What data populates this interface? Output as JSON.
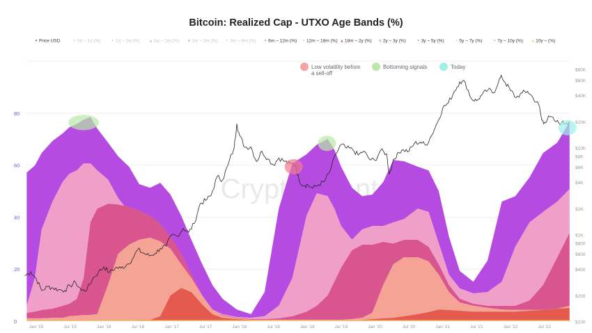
{
  "chart_data": {
    "type": "area",
    "title": "Bitcoin: Realized Cap - UTXO Age Bands (%)",
    "watermark": "CryptoQuant",
    "xlabel": "",
    "ylabel_left": "",
    "ylabel_right": "",
    "ylim_left": [
      0,
      100
    ],
    "ylim_right_log": [
      100,
      100000
    ],
    "grid": true,
    "legend_position": "top",
    "legend": [
      {
        "label": "Price USD",
        "marker": "•",
        "active": true,
        "color": "#222222"
      },
      {
        "label": "0d ~ 1d (%)",
        "marker": "•",
        "active": false,
        "color": "#c4c4c4"
      },
      {
        "label": "1d ~ 1w (%)",
        "marker": "•",
        "active": false,
        "color": "#c4c4c4"
      },
      {
        "label": "1w ~ 1m (%)",
        "marker": "▲",
        "active": false,
        "color": "#c4c4c4"
      },
      {
        "label": "1m ~ 3m (%)",
        "marker": "▼",
        "active": false,
        "color": "#c4c4c4"
      },
      {
        "label": "3m ~ 6m (%)",
        "marker": "•",
        "active": false,
        "color": "#c4c4c4"
      },
      {
        "label": "6m ~ 12m (%)",
        "marker": "•",
        "active": true,
        "color": "#b54be0"
      },
      {
        "label": "12m ~ 18m (%)",
        "marker": "•",
        "active": true,
        "color": "#f0a0c8"
      },
      {
        "label": "18m ~ 2y (%)",
        "marker": "▲",
        "active": true,
        "color": "#d9558e"
      },
      {
        "label": "2y ~ 3y (%)",
        "marker": "▼",
        "active": true,
        "color": "#f4a394"
      },
      {
        "label": "3y ~ 5y (%)",
        "marker": "•",
        "active": true,
        "color": "#e45a4e"
      },
      {
        "label": "5y ~ 7y (%)",
        "marker": "•",
        "active": true,
        "color": "#f7c2a0"
      },
      {
        "label": "7y ~ 10y (%)",
        "marker": "•",
        "active": true,
        "color": "#f08a3c"
      },
      {
        "label": "10y ~ (%)",
        "marker": "▲",
        "active": true,
        "color": "#f2d27a"
      }
    ],
    "annotations": [
      {
        "label": "Low volatility before",
        "label2": "a sell-off",
        "color": "#f5a3a0"
      },
      {
        "label": "Bottoming signals",
        "color": "#b9e8a8"
      },
      {
        "label": "Today",
        "color": "#9ef0e8"
      }
    ],
    "left_ticks": [
      0,
      20,
      40,
      60,
      80
    ],
    "right_ticks": [
      {
        "label": "$80K",
        "value": 80000
      },
      {
        "label": "$60K",
        "value": 60000
      },
      {
        "label": "$40K",
        "value": 40000
      },
      {
        "label": "$20K",
        "value": 20000
      },
      {
        "label": "$10K",
        "value": 10000
      },
      {
        "label": "$8K",
        "value": 8000
      },
      {
        "label": "$6K",
        "value": 6000
      },
      {
        "label": "$4K",
        "value": 4000
      },
      {
        "label": "$2K",
        "value": 2000
      },
      {
        "label": "$1K",
        "value": 1000
      },
      {
        "label": "$800",
        "value": 800
      },
      {
        "label": "$600",
        "value": 600
      },
      {
        "label": "$400",
        "value": 400
      },
      {
        "label": "$200",
        "value": 200
      },
      {
        "label": "$100",
        "value": 100
      }
    ],
    "x_ticks": [
      {
        "label": "Jan '15",
        "year": 2015.0
      },
      {
        "label": "Jul '15",
        "year": 2015.5
      },
      {
        "label": "Jan '16",
        "year": 2016.0
      },
      {
        "label": "Jul '16",
        "year": 2016.5
      },
      {
        "label": "Jan '17",
        "year": 2017.0
      },
      {
        "label": "Jul '17",
        "year": 2017.5
      },
      {
        "label": "Jan '18",
        "year": 2018.0
      },
      {
        "label": "Jul '18",
        "year": 2018.5
      },
      {
        "label": "Jan '19",
        "year": 2019.0
      },
      {
        "label": "Jul '19",
        "year": 2019.5
      },
      {
        "label": "Jan '20",
        "year": 2020.0
      },
      {
        "label": "Jul '20",
        "year": 2020.5
      },
      {
        "label": "Jan '21",
        "year": 2021.0
      },
      {
        "label": "Jul '21",
        "year": 2021.5
      },
      {
        "label": "Jan '22",
        "year": 2022.0
      },
      {
        "label": "Jul '22",
        "year": 2022.5
      }
    ],
    "highlights": [
      {
        "type": "bottoming",
        "year": 2015.7,
        "pct": 78
      },
      {
        "type": "low-volatility",
        "year": 2018.8,
        "pct": 61
      },
      {
        "type": "bottoming",
        "year": 2019.29,
        "pct": 70
      },
      {
        "type": "today",
        "year": 2022.84,
        "pct": 76
      }
    ],
    "x": [
      2014.86,
      2014.98,
      2015.08,
      2015.24,
      2015.39,
      2015.49,
      2015.6,
      2015.7,
      2015.8,
      2015.9,
      2016.06,
      2016.21,
      2016.37,
      2016.52,
      2016.68,
      2016.83,
      2016.98,
      2017.14,
      2017.29,
      2017.45,
      2017.6,
      2017.75,
      2017.96,
      2018.17,
      2018.37,
      2018.58,
      2018.78,
      2018.99,
      2019.14,
      2019.3,
      2019.4,
      2019.5,
      2019.66,
      2019.81,
      2019.96,
      2020.12,
      2020.27,
      2020.43,
      2020.63,
      2020.79,
      2020.94,
      2021.09,
      2021.25,
      2021.45,
      2021.66,
      2021.87,
      2022.07,
      2022.28,
      2022.48,
      2022.69,
      2022.87
    ],
    "series": [
      {
        "name": "6m ~ 12m (%)",
        "color": "#b54be0",
        "cumulative_top_pct": [
          57.2,
          59.9,
          64.7,
          69.3,
          72.2,
          74.6,
          75.9,
          77.5,
          78.6,
          74.1,
          68.7,
          63.4,
          59.4,
          52.7,
          51.3,
          53.2,
          48.7,
          40.6,
          31.3,
          21.9,
          13.9,
          8.6,
          4.5,
          2.7,
          11.2,
          43.3,
          60.7,
          64.2,
          67.9,
          70.1,
          66.0,
          59.4,
          51.3,
          48.1,
          48.7,
          53.5,
          62.0,
          61.5,
          59.4,
          58.0,
          50.0,
          32.6,
          19.3,
          15.2,
          23.3,
          46.0,
          48.1,
          55.3,
          64.7,
          68.7,
          76.7
        ]
      },
      {
        "name": "12m ~ 18m (%)",
        "color": "#f0a0c8",
        "cumulative_top_pct": [
          5.9,
          16.6,
          35.3,
          46.0,
          53.5,
          56.7,
          58.0,
          60.7,
          60.7,
          58.0,
          54.5,
          47.3,
          42.0,
          38.5,
          38.0,
          35.3,
          29.9,
          21.9,
          13.9,
          8.6,
          4.5,
          2.7,
          1.6,
          1.3,
          1.9,
          5.9,
          16.6,
          40.6,
          49.2,
          48.1,
          43.3,
          36.6,
          31.3,
          35.3,
          36.6,
          36.6,
          38.0,
          39.3,
          43.3,
          42.0,
          29.9,
          17.9,
          12.6,
          10.7,
          11.2,
          15.2,
          28.6,
          38.0,
          42.0,
          46.0,
          50.8
        ]
      },
      {
        "name": "18m ~ 2y (%)",
        "color": "#d9558e",
        "cumulative_top_pct": [
          3.2,
          3.7,
          4.3,
          4.8,
          5.9,
          6.7,
          8.6,
          16.6,
          38.0,
          43.3,
          45.2,
          44.9,
          43.9,
          42.5,
          40.6,
          37.4,
          32.6,
          25.9,
          17.9,
          9.9,
          4.5,
          2.4,
          1.3,
          0.8,
          0.8,
          1.1,
          1.9,
          3.7,
          5.9,
          9.9,
          15.2,
          20.6,
          27.3,
          29.4,
          29.4,
          30.5,
          29.9,
          31.3,
          31.3,
          28.6,
          21.9,
          13.9,
          8.6,
          6.7,
          5.9,
          5.9,
          5.9,
          8.0,
          13.9,
          24.6,
          34.0
        ]
      },
      {
        "name": "2y ~ 3y (%)",
        "color": "#f4a394",
        "cumulative_top_pct": [
          1.1,
          1.1,
          1.1,
          1.3,
          1.3,
          1.9,
          2.1,
          2.4,
          2.4,
          2.7,
          13.9,
          25.9,
          29.4,
          31.3,
          32.1,
          30.7,
          27.8,
          21.9,
          16.6,
          9.9,
          4.5,
          2.1,
          1.1,
          0.5,
          0.5,
          0.5,
          0.5,
          0.5,
          0.5,
          0.5,
          0.5,
          0.5,
          0.8,
          1.3,
          3.2,
          13.9,
          21.9,
          24.6,
          24.6,
          23.0,
          17.9,
          11.2,
          7.2,
          5.9,
          5.1,
          4.5,
          4.3,
          4.3,
          4.3,
          4.8,
          5.9
        ]
      },
      {
        "name": "3y ~ 5y (%)",
        "color": "#e45a4e",
        "cumulative_top_pct": [
          0.3,
          0.3,
          0.3,
          0.3,
          0.3,
          0.3,
          0.3,
          0.3,
          0.3,
          0.3,
          0.4,
          0.4,
          0.4,
          0.5,
          0.5,
          1.9,
          9.9,
          12.8,
          11.2,
          6.4,
          2.7,
          1.3,
          0.8,
          0.4,
          0.4,
          0.4,
          0.4,
          0.4,
          0.4,
          0.4,
          0.4,
          0.4,
          0.4,
          0.5,
          0.8,
          1.1,
          1.3,
          1.9,
          2.7,
          3.5,
          4.5,
          4.3,
          4.0,
          3.7,
          3.7,
          3.7,
          3.7,
          4.0,
          4.3,
          4.8,
          5.1
        ]
      }
    ],
    "price_usd": {
      "name": "Price USD",
      "color": "#222222",
      "points": [
        [
          2014.83,
          340
        ],
        [
          2014.92,
          375
        ],
        [
          2015.0,
          315
        ],
        [
          2015.08,
          230
        ],
        [
          2015.17,
          255
        ],
        [
          2015.25,
          245
        ],
        [
          2015.33,
          235
        ],
        [
          2015.42,
          230
        ],
        [
          2015.5,
          260
        ],
        [
          2015.58,
          285
        ],
        [
          2015.67,
          230
        ],
        [
          2015.75,
          237
        ],
        [
          2015.83,
          310
        ],
        [
          2015.92,
          375
        ],
        [
          2016.0,
          430
        ],
        [
          2016.08,
          370
        ],
        [
          2016.17,
          420
        ],
        [
          2016.25,
          415
        ],
        [
          2016.33,
          450
        ],
        [
          2016.42,
          530
        ],
        [
          2016.5,
          680
        ],
        [
          2016.58,
          620
        ],
        [
          2016.67,
          575
        ],
        [
          2016.75,
          610
        ],
        [
          2016.83,
          700
        ],
        [
          2016.92,
          745
        ],
        [
          2017.0,
          1000
        ],
        [
          2017.08,
          970
        ],
        [
          2017.17,
          1190
        ],
        [
          2017.25,
          1070
        ],
        [
          2017.33,
          1350
        ],
        [
          2017.42,
          2300
        ],
        [
          2017.5,
          2500
        ],
        [
          2017.58,
          2850
        ],
        [
          2017.67,
          4700
        ],
        [
          2017.75,
          4300
        ],
        [
          2017.83,
          6400
        ],
        [
          2017.92,
          10000
        ],
        [
          2017.96,
          19000
        ],
        [
          2018.0,
          14000
        ],
        [
          2018.08,
          10200
        ],
        [
          2018.17,
          10300
        ],
        [
          2018.25,
          7000
        ],
        [
          2018.33,
          9200
        ],
        [
          2018.42,
          7500
        ],
        [
          2018.5,
          6400
        ],
        [
          2018.58,
          7700
        ],
        [
          2018.67,
          7000
        ],
        [
          2018.75,
          6600
        ],
        [
          2018.83,
          6300
        ],
        [
          2018.88,
          4200
        ],
        [
          2018.96,
          3700
        ],
        [
          2019.0,
          3800
        ],
        [
          2019.08,
          3450
        ],
        [
          2019.17,
          3800
        ],
        [
          2019.25,
          4100
        ],
        [
          2019.33,
          5300
        ],
        [
          2019.42,
          8500
        ],
        [
          2019.5,
          11000
        ],
        [
          2019.58,
          10000
        ],
        [
          2019.67,
          9600
        ],
        [
          2019.75,
          8300
        ],
        [
          2019.83,
          9200
        ],
        [
          2019.92,
          7400
        ],
        [
          2020.0,
          7200
        ],
        [
          2020.08,
          9350
        ],
        [
          2020.17,
          8600
        ],
        [
          2020.21,
          5000
        ],
        [
          2020.25,
          6400
        ],
        [
          2020.33,
          8800
        ],
        [
          2020.42,
          9500
        ],
        [
          2020.5,
          9200
        ],
        [
          2020.58,
          11300
        ],
        [
          2020.67,
          11700
        ],
        [
          2020.75,
          10800
        ],
        [
          2020.83,
          13800
        ],
        [
          2020.92,
          19700
        ],
        [
          2021.0,
          29000
        ],
        [
          2021.08,
          33000
        ],
        [
          2021.17,
          45000
        ],
        [
          2021.25,
          58000
        ],
        [
          2021.33,
          57000
        ],
        [
          2021.42,
          37000
        ],
        [
          2021.5,
          35000
        ],
        [
          2021.58,
          41000
        ],
        [
          2021.67,
          47000
        ],
        [
          2021.75,
          43000
        ],
        [
          2021.83,
          61000
        ],
        [
          2021.87,
          66000
        ],
        [
          2021.92,
          57000
        ],
        [
          2022.0,
          46000
        ],
        [
          2022.08,
          38000
        ],
        [
          2022.17,
          43000
        ],
        [
          2022.25,
          45000
        ],
        [
          2022.33,
          38000
        ],
        [
          2022.42,
          31000
        ],
        [
          2022.46,
          21000
        ],
        [
          2022.5,
          19800
        ],
        [
          2022.58,
          23000
        ],
        [
          2022.67,
          20000
        ],
        [
          2022.75,
          19400
        ],
        [
          2022.83,
          19500
        ],
        [
          2022.87,
          20300
        ]
      ]
    }
  }
}
